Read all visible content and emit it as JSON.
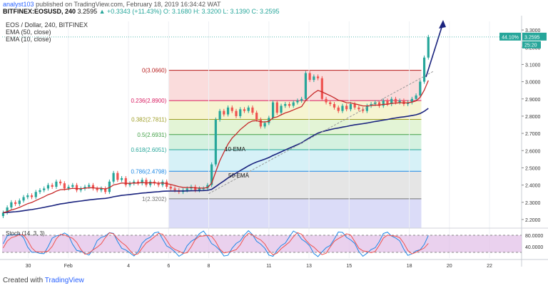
{
  "header": {
    "user": "analyst103",
    "published_text": "published on TradingView.com, February 18, 2019 16:34:42 WAT",
    "symbol": "BITFINEX:EOSUSD, 240",
    "price": "3.2595",
    "change": "▲ +0.3343 (+11.43%)",
    "ohlc": "O: 3.1680 H: 3.3200 L: 3.1390 C: 3.2595"
  },
  "legend": {
    "title": "EOS / Dollar, 240, BITFINEX",
    "ema50": "EMA (50, close)",
    "ema10": "EMA (10, close)"
  },
  "price_tags": {
    "percent": "44.10%",
    "last": "3.2595",
    "timer": "25:20"
  },
  "annotations": {
    "ema10": "10-EMA",
    "ema50": "50-EMA"
  },
  "stoch": {
    "label": "Stoch (14, 3, 3)",
    "levels": [
      "80.0000",
      "40.0000"
    ]
  },
  "footer": {
    "created": "Created with",
    "brand": "TradingView"
  },
  "colors": {
    "up": "#26a69a",
    "down": "#ef5350",
    "ema10": "#c62828",
    "ema50": "#1a237e",
    "arrow": "#1a237e",
    "k": "#1e88e5",
    "d": "#ef5350",
    "stoch_bg": "#e1bee7"
  },
  "chart_data": {
    "type": "candlestick",
    "ylim": [
      2.15,
      3.35
    ],
    "y_ticks": [
      "3.3000",
      "3.2000",
      "3.1000",
      "3.0000",
      "2.9000",
      "2.8000",
      "2.7000",
      "2.6000",
      "2.5000",
      "2.4000",
      "2.3000",
      "2.2000"
    ],
    "y_tick_values": [
      3.3,
      3.2,
      3.1,
      3.0,
      2.9,
      2.8,
      2.7,
      2.6,
      2.5,
      2.4,
      2.3,
      2.2
    ],
    "x_ticks": [
      "30",
      "Feb",
      "4",
      "6",
      "8",
      "11",
      "13",
      "15",
      "18",
      "20",
      "22"
    ],
    "x_tick_days": [
      -2,
      0,
      3,
      5,
      7,
      10,
      12,
      14,
      17,
      19,
      21
    ],
    "fibonacci": {
      "levels": [
        {
          "label": "0(3.0660)",
          "value": 3.066
        },
        {
          "label": "0.236(2.8900)",
          "value": 2.89
        },
        {
          "label": "0.382(2.7811)",
          "value": 2.7811
        },
        {
          "label": "0.5(2.6931)",
          "value": 2.6931
        },
        {
          "label": "0.618(2.6051)",
          "value": 2.6051
        },
        {
          "label": "0.786(2.4798)",
          "value": 2.4798
        },
        {
          "label": "1(2.3202)",
          "value": 2.3202
        }
      ],
      "colors": [
        "#f8d0d0",
        "#f3f0c2",
        "#d9f0c8",
        "#c6ecd6",
        "#c8ecf4",
        "#dcdcdc",
        "#cfd0f5"
      ],
      "line_colors": [
        "#b71c1c",
        "#d81b60",
        "#9e9d24",
        "#43a047",
        "#26a69a",
        "#1e88e5",
        "#757575"
      ],
      "day_range": [
        5,
        17.6
      ]
    },
    "closes": [
      2.24,
      2.27,
      2.3,
      2.29,
      2.31,
      2.33,
      2.34,
      2.33,
      2.36,
      2.37,
      2.38,
      2.4,
      2.39,
      2.42,
      2.41,
      2.38,
      2.39,
      2.4,
      2.37,
      2.38,
      2.39,
      2.4,
      2.38,
      2.37,
      2.38,
      2.36,
      2.42,
      2.47,
      2.43,
      2.44,
      2.4,
      2.41,
      2.42,
      2.41,
      2.43,
      2.4,
      2.42,
      2.41,
      2.4,
      2.42,
      2.39,
      2.38,
      2.37,
      2.36,
      2.37,
      2.38,
      2.39,
      2.37,
      2.38,
      2.38,
      2.4,
      2.52,
      2.78,
      2.83,
      2.81,
      2.85,
      2.83,
      2.8,
      2.84,
      2.83,
      2.85,
      2.82,
      2.78,
      2.74,
      2.76,
      2.79,
      2.88,
      2.82,
      2.86,
      2.87,
      2.86,
      2.88,
      2.89,
      2.9,
      3.05,
      3.01,
      3.03,
      3.02,
      2.9,
      2.88,
      2.87,
      2.85,
      2.83,
      2.86,
      2.84,
      2.87,
      2.85,
      2.84,
      2.83,
      2.86,
      2.87,
      2.88,
      2.86,
      2.89,
      2.87,
      2.9,
      2.88,
      2.89,
      2.87,
      2.88,
      2.9,
      2.92,
      3.0,
      3.14,
      3.26
    ]
  }
}
